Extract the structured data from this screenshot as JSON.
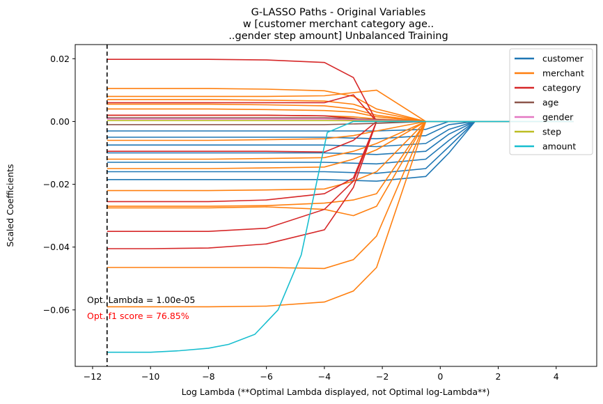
{
  "chart_data": {
    "type": "line",
    "title_lines": [
      "G-LASSO Paths - Original Variables",
      "w [customer merchant category age..",
      "..gender step amount] Unbalanced Training"
    ],
    "xlabel": "Log Lambda (**Optimal Lambda displayed, not Optimal log-Lambda**)",
    "ylabel": "Scaled Coefficients",
    "xlim": [
      -12.6,
      5.4
    ],
    "ylim": [
      -0.078,
      0.0245
    ],
    "x_ticks": [
      -12,
      -10,
      -8,
      -6,
      -4,
      -2,
      0,
      2,
      4
    ],
    "x_tick_labels": [
      "−12",
      "−10",
      "−8",
      "−6",
      "−4",
      "−2",
      "0",
      "2",
      "4"
    ],
    "y_ticks": [
      0.02,
      0.0,
      -0.02,
      -0.04,
      -0.06
    ],
    "y_tick_labels": [
      "0.02",
      "0.00",
      "−0.02",
      "−0.04",
      "−0.06"
    ],
    "grid": false,
    "legend_position": "top-right",
    "optimal_log_lambda": -11.5,
    "annotations": [
      {
        "text": "Opt. Lambda = 1.00e-05",
        "color": "#000000"
      },
      {
        "text": "Opt. f1 score = 76.85%",
        "color": "#ff0000"
      }
    ],
    "series": [
      {
        "name": "customer",
        "color": "#1f77b4",
        "x": [
          -11.5,
          -10,
          -8,
          -6,
          -4,
          -2.2,
          -0.5,
          0.3,
          1.2,
          4.6
        ],
        "lines": [
          [
            -0.0185,
            -0.0185,
            -0.0185,
            -0.0185,
            -0.0185,
            -0.019,
            -0.0175,
            -0.01,
            0.0,
            0.0
          ],
          [
            -0.016,
            -0.016,
            -0.016,
            -0.016,
            -0.016,
            -0.0165,
            -0.015,
            -0.008,
            0.0,
            0.0
          ],
          [
            -0.013,
            -0.013,
            -0.013,
            -0.013,
            -0.013,
            -0.0135,
            -0.012,
            -0.006,
            0.0,
            0.0
          ],
          [
            -0.01,
            -0.01,
            -0.01,
            -0.01,
            -0.01,
            -0.0105,
            -0.0095,
            -0.004,
            0.0,
            0.0
          ],
          [
            -0.0075,
            -0.0075,
            -0.0075,
            -0.0075,
            -0.0075,
            -0.008,
            -0.007,
            -0.0025,
            0.0,
            0.0
          ],
          [
            -0.005,
            -0.005,
            -0.005,
            -0.005,
            -0.005,
            -0.0055,
            -0.0045,
            -0.001,
            0.0,
            0.0
          ],
          [
            -0.003,
            -0.003,
            -0.003,
            -0.003,
            -0.003,
            -0.003,
            -0.0025,
            0.0,
            0.0,
            0.0
          ]
        ]
      },
      {
        "name": "merchant",
        "color": "#ff7f0e",
        "x": [
          -11.5,
          -10,
          -8,
          -6,
          -4,
          -3,
          -2.2,
          -0.5,
          4.6
        ],
        "lines": [
          [
            -0.059,
            -0.059,
            -0.059,
            -0.0588,
            -0.0575,
            -0.054,
            -0.0465,
            0.0,
            0.0
          ],
          [
            -0.0465,
            -0.0465,
            -0.0465,
            -0.0465,
            -0.0468,
            -0.044,
            -0.0365,
            0.0,
            0.0
          ],
          [
            -0.027,
            -0.027,
            -0.027,
            -0.0268,
            -0.026,
            -0.025,
            -0.023,
            0.0,
            0.0
          ],
          [
            -0.0275,
            -0.0275,
            -0.0275,
            -0.0272,
            -0.028,
            -0.03,
            -0.027,
            0.0,
            0.0
          ],
          [
            -0.022,
            -0.022,
            -0.022,
            -0.0218,
            -0.0215,
            -0.019,
            -0.016,
            0.0,
            0.0
          ],
          [
            -0.015,
            -0.015,
            -0.015,
            -0.0148,
            -0.0145,
            -0.012,
            -0.009,
            0.0,
            0.0
          ],
          [
            -0.012,
            -0.012,
            -0.012,
            -0.0118,
            -0.0115,
            -0.0095,
            -0.007,
            0.0,
            0.0
          ],
          [
            -0.006,
            -0.006,
            -0.006,
            -0.0058,
            -0.0055,
            -0.0045,
            -0.003,
            0.0,
            0.0
          ],
          [
            0.0105,
            0.0105,
            0.0105,
            0.0103,
            0.0098,
            0.008,
            0.004,
            0.0,
            0.0
          ],
          [
            0.008,
            0.008,
            0.008,
            0.008,
            0.0082,
            0.0092,
            0.01,
            0.0,
            0.0
          ],
          [
            0.007,
            0.007,
            0.007,
            0.0068,
            0.0065,
            0.0055,
            0.003,
            0.0,
            0.0
          ],
          [
            0.0055,
            0.0055,
            0.0055,
            0.0053,
            0.005,
            0.004,
            0.002,
            0.0,
            0.0
          ],
          [
            0.004,
            0.004,
            0.004,
            0.0038,
            0.0035,
            0.003,
            0.0015,
            0.0,
            0.0
          ],
          [
            0.002,
            0.002,
            0.002,
            0.002,
            0.0018,
            0.0015,
            0.0008,
            0.0,
            0.0
          ]
        ]
      },
      {
        "name": "category",
        "color": "#d62728",
        "x": [
          -11.5,
          -10,
          -8,
          -6,
          -4,
          -3,
          -2.2,
          -0.5,
          4.6
        ],
        "lines": [
          [
            0.0198,
            0.0198,
            0.0198,
            0.0196,
            0.0188,
            0.014,
            0.0,
            0.0,
            0.0
          ],
          [
            0.006,
            0.006,
            0.006,
            0.006,
            0.006,
            0.0085,
            0.0,
            0.0,
            0.0
          ],
          [
            0.002,
            0.002,
            0.002,
            0.002,
            0.0018,
            0.001,
            0.0,
            0.0,
            0.0
          ],
          [
            -0.0095,
            -0.0095,
            -0.0095,
            -0.0095,
            -0.0097,
            -0.006,
            0.0,
            0.0,
            0.0
          ],
          [
            -0.0255,
            -0.0255,
            -0.0255,
            -0.025,
            -0.023,
            -0.018,
            0.0,
            0.0,
            0.0
          ],
          [
            -0.035,
            -0.035,
            -0.035,
            -0.034,
            -0.028,
            -0.019,
            0.0,
            0.0,
            0.0
          ],
          [
            -0.0405,
            -0.0405,
            -0.0403,
            -0.039,
            -0.0345,
            -0.021,
            0.0,
            0.0,
            0.0
          ]
        ]
      },
      {
        "name": "age",
        "color": "#8c564b",
        "x": [
          -11.5,
          -4,
          -2.2,
          -0.5,
          4.6
        ],
        "lines": [
          [
            -0.001,
            -0.001,
            -0.0006,
            0.0,
            0.0
          ],
          [
            0.0012,
            0.0012,
            0.0006,
            0.0,
            0.0
          ]
        ]
      },
      {
        "name": "gender",
        "color": "#e377c2",
        "x": [
          -11.5,
          -4,
          -2.2,
          -0.5,
          4.6
        ],
        "lines": [
          [
            0.0008,
            0.0008,
            0.0004,
            0.0,
            0.0
          ]
        ]
      },
      {
        "name": "step",
        "color": "#bcbd22",
        "x": [
          -11.5,
          -4,
          -2.2,
          -0.5,
          4.6
        ],
        "lines": [
          [
            0.0003,
            0.0003,
            0.0002,
            0.0,
            0.0
          ]
        ]
      },
      {
        "name": "amount",
        "color": "#17becf",
        "x": [
          -11.5,
          -10,
          -9,
          -8,
          -7.3,
          -6.4,
          -5.6,
          -4.8,
          -3.9,
          -3,
          -0.5,
          4.6
        ],
        "lines": [
          [
            -0.0735,
            -0.0735,
            -0.073,
            -0.0722,
            -0.071,
            -0.0678,
            -0.06,
            -0.0425,
            -0.0035,
            0.0,
            0.0,
            0.0
          ]
        ]
      }
    ]
  }
}
